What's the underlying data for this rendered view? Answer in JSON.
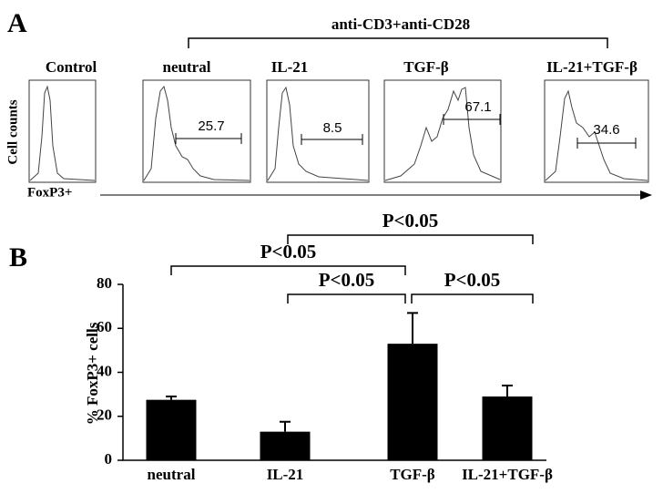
{
  "panel_a": {
    "label": "A",
    "stimulus": "anti-CD3+anti-CD28",
    "y_label": "Cell counts",
    "x_label": "FoxP3+",
    "histograms": [
      {
        "title": "Control"
      },
      {
        "title": "neutral",
        "gate": 25.7
      },
      {
        "title": "IL-21",
        "gate": 8.5
      },
      {
        "title": "TGF-β",
        "gate": 67.1
      },
      {
        "title": "IL-21+TGF-β",
        "gate": 34.6
      }
    ]
  },
  "chart_data": {
    "type": "bar",
    "panel_label": "B",
    "y_label": "% FoxP3+ cells",
    "categories": [
      "neutral",
      "IL-21",
      "TGF-β",
      "IL-21+TGF-β"
    ],
    "values": [
      27.5,
      13,
      53,
      29
    ],
    "errors": [
      1.5,
      4.5,
      14,
      5
    ],
    "color": "#000000",
    "ylim": [
      0,
      80
    ],
    "yticks": [
      0,
      20,
      40,
      60,
      80
    ],
    "significance": [
      "P<0.05",
      "P<0.05",
      "P<0.05",
      "P<0.05"
    ]
  }
}
